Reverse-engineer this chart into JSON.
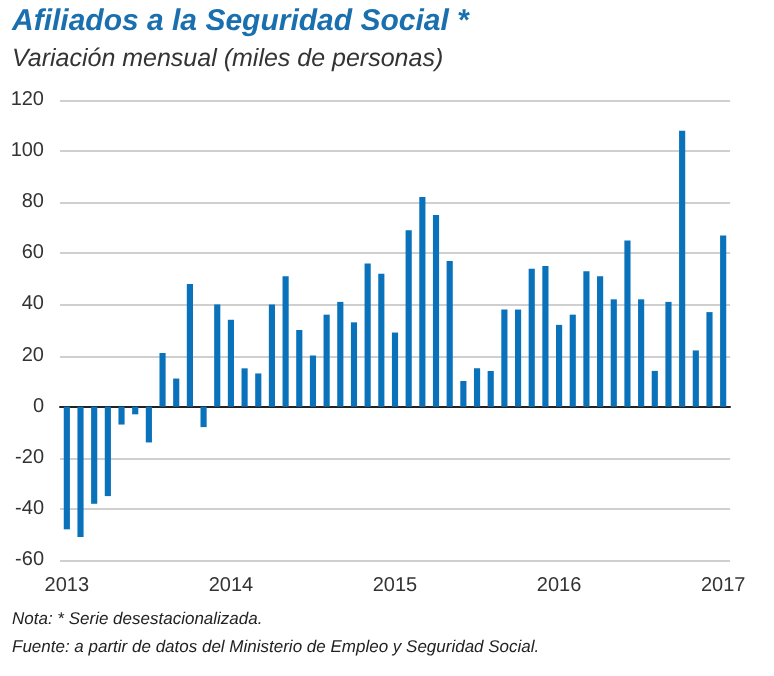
{
  "chart_data": {
    "type": "bar",
    "title": "Afiliados a la Seguridad Social *",
    "subtitle": "Variación mensual (miles de personas)",
    "categories": [
      "2013",
      null,
      null,
      null,
      null,
      null,
      null,
      null,
      null,
      null,
      null,
      null,
      "2014",
      null,
      null,
      null,
      null,
      null,
      null,
      null,
      null,
      null,
      null,
      null,
      "2015",
      null,
      null,
      null,
      null,
      null,
      null,
      null,
      null,
      null,
      null,
      null,
      "2016",
      null,
      null,
      null,
      null,
      null,
      null,
      null,
      null,
      null,
      null,
      null,
      "2017"
    ],
    "values": [
      -48,
      -51,
      -38,
      -35,
      -7,
      -3,
      -14,
      21,
      11,
      48,
      -8,
      40,
      34,
      15,
      13,
      40,
      51,
      30,
      20,
      36,
      41,
      33,
      56,
      52,
      29,
      69,
      82,
      75,
      57,
      10,
      15,
      14,
      38,
      38,
      54,
      55,
      32,
      36,
      53,
      51,
      42,
      65,
      42,
      14,
      41,
      108,
      22,
      37,
      67
    ],
    "color": "#0a72ba",
    "ylim": [
      -60,
      120
    ],
    "yticks": [
      -60,
      -40,
      -20,
      0,
      20,
      40,
      60,
      80,
      100,
      120
    ],
    "grid": "y",
    "annotations": [
      "Nota: * Serie desestacionalizada.",
      "Fuente: a partir de datos del Ministerio de Empleo y Seguridad Social."
    ]
  }
}
